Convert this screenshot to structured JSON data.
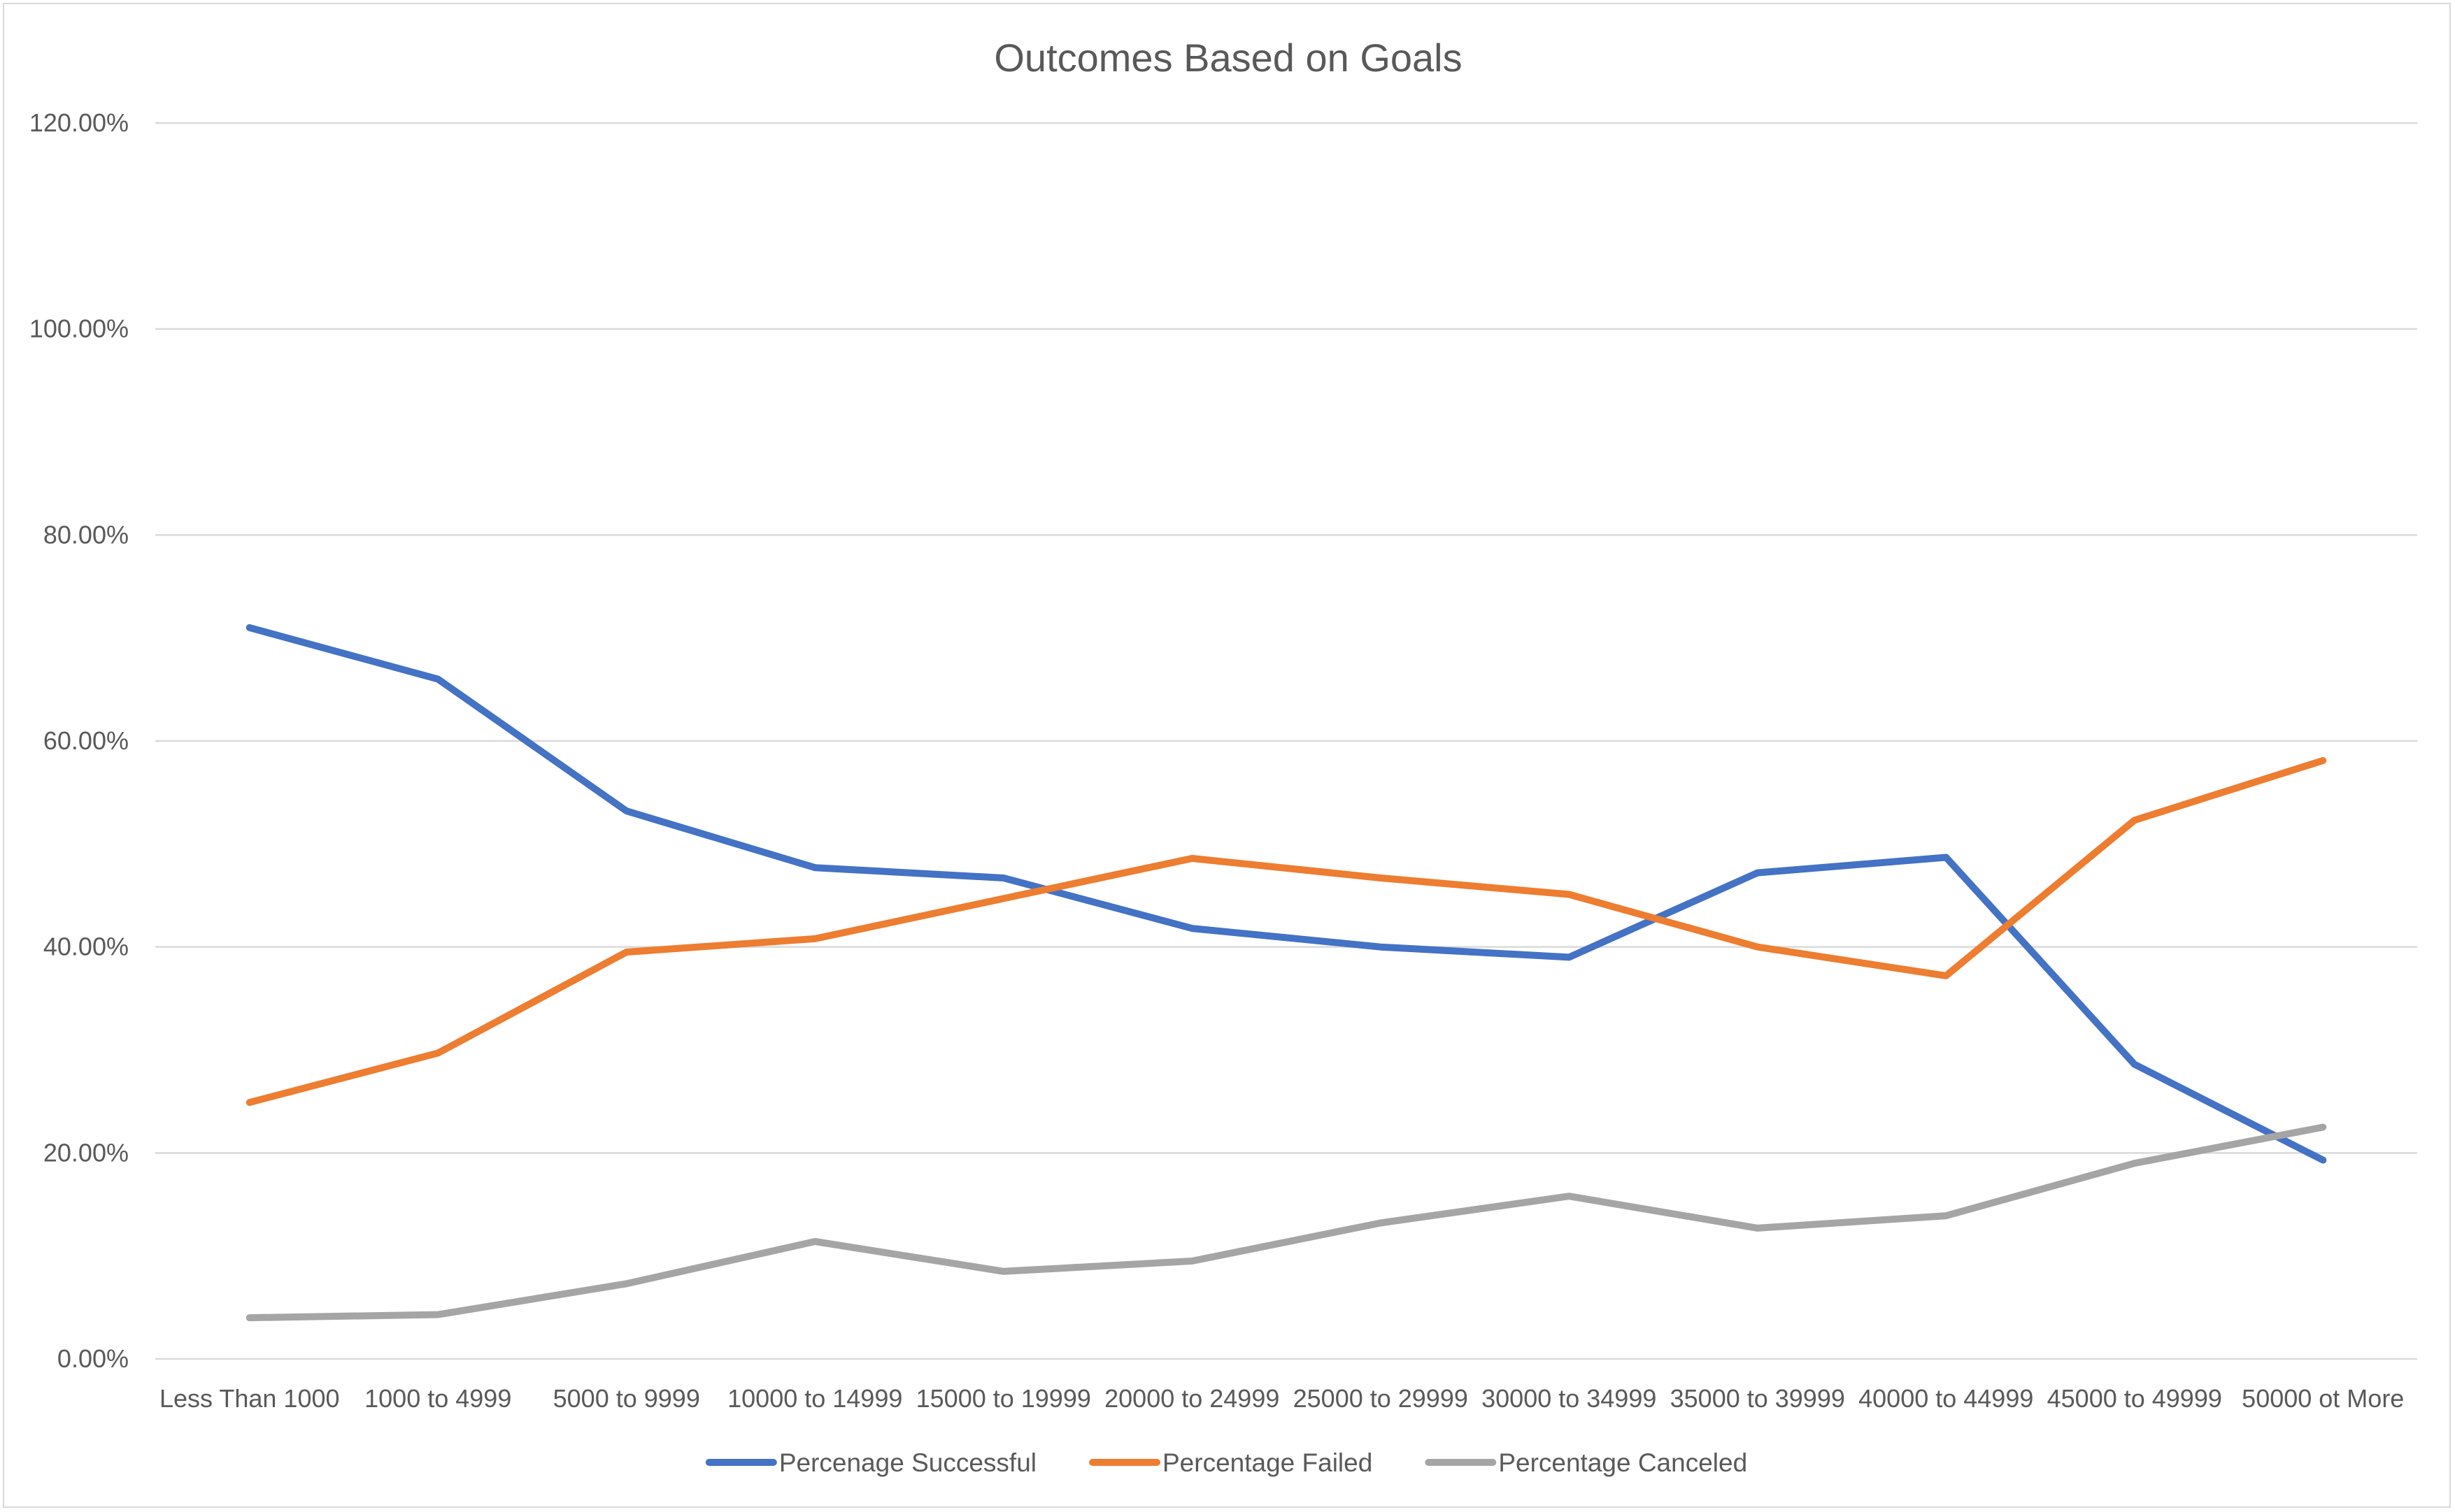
{
  "chart_data": {
    "type": "line",
    "title": "Outcomes Based on Goals",
    "xlabel": "",
    "ylabel": "",
    "categories": [
      "Less Than 1000",
      "1000 to 4999",
      "5000 to 9999",
      "10000 to 14999",
      "15000 to 19999",
      "20000 to 24999",
      "25000 to 29999",
      "30000 to 34999",
      "35000 to 39999",
      "40000 to 44999",
      "45000 to 49999",
      "50000 ot More"
    ],
    "y_ticks": [
      "0.00%",
      "20.00%",
      "40.00%",
      "60.00%",
      "80.00%",
      "100.00%",
      "120.00%"
    ],
    "ylim": [
      0,
      1.2
    ],
    "grid": true,
    "legend_position": "bottom",
    "series": [
      {
        "name": "Percenage Successful",
        "color": "#4472c4",
        "values": [
          0.71,
          0.66,
          0.532,
          0.477,
          0.467,
          0.418,
          0.4,
          0.39,
          0.472,
          0.487,
          0.286,
          0.193
        ]
      },
      {
        "name": "Percentage Failed",
        "color": "#ed7d31",
        "values": [
          0.249,
          0.297,
          0.395,
          0.408,
          0.447,
          0.486,
          0.467,
          0.451,
          0.4,
          0.372,
          0.523,
          0.581
        ]
      },
      {
        "name": "Percentage Canceled",
        "color": "#a5a5a5",
        "values": [
          0.04,
          0.043,
          0.073,
          0.114,
          0.085,
          0.095,
          0.132,
          0.158,
          0.127,
          0.139,
          0.19,
          0.225
        ]
      }
    ]
  }
}
